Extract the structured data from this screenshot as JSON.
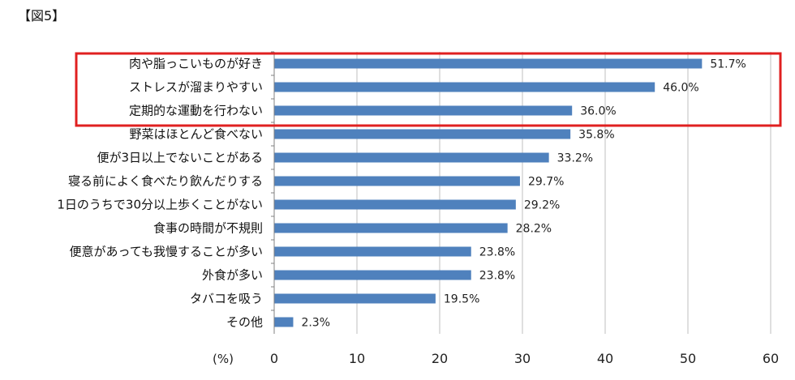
{
  "figure_label": "【図5】",
  "chart_data": {
    "type": "bar",
    "orientation": "horizontal",
    "categories": [
      "肉や脂っこいものが好き",
      "ストレスが溜まりやすい",
      "定期的な運動を行わない",
      "野菜はほとんど食べない",
      "便が3日以上でないことがある",
      "寝る前によく食べたり飲んだりする",
      "1日のうちで30分以上歩くことがない",
      "食事の時間が不規則",
      "便意があっても我慢することが多い",
      "外食が多い",
      "タバコを吸う",
      "その他"
    ],
    "values": [
      51.7,
      46.0,
      36.0,
      35.8,
      33.2,
      29.7,
      29.2,
      28.2,
      23.8,
      23.8,
      19.5,
      2.3
    ],
    "value_labels": [
      "51.7%",
      "46.0%",
      "36.0%",
      "35.8%",
      "33.2%",
      "29.7%",
      "29.2%",
      "28.2%",
      "23.8%",
      "23.8%",
      "19.5%",
      "2.3%"
    ],
    "xlim": [
      0,
      60
    ],
    "xticks": [
      "0",
      "10",
      "20",
      "30",
      "40",
      "50",
      "60"
    ],
    "unit_label": "(%)",
    "grid": true,
    "bar_color": "#4f81bd",
    "highlight": {
      "categories_count": 3,
      "color": "#e02020"
    }
  }
}
